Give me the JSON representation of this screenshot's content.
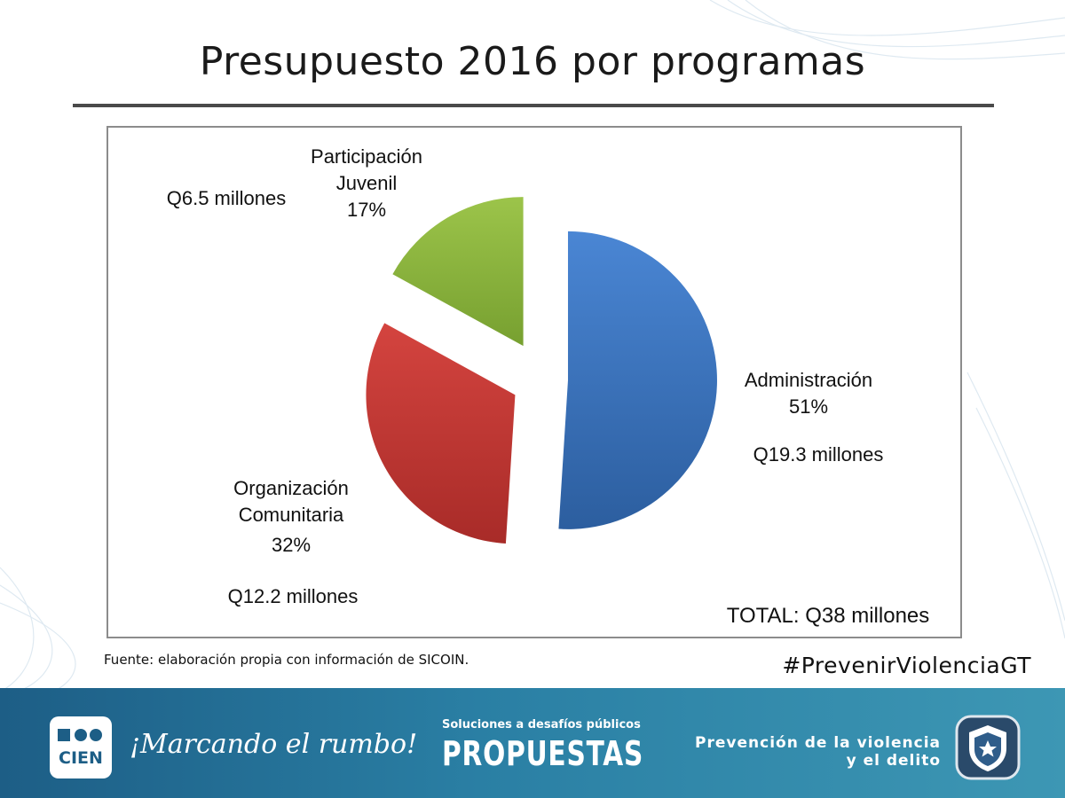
{
  "header": {
    "title": "Presupuesto 2016 por programas"
  },
  "chart_data": {
    "type": "pie",
    "title": "Presupuesto 2016 por programas",
    "slices": [
      {
        "name": "Administración",
        "percent": 51,
        "amount_label": "Q19.3 millones",
        "value": 19.3,
        "color": "#3a77c3"
      },
      {
        "name": "Organización Comunitaria",
        "name_lines": [
          "Organización",
          "Comunitaria"
        ],
        "percent": 32,
        "amount_label": "Q12.2 millones",
        "value": 12.2,
        "color": "#c33a36"
      },
      {
        "name": "Participación Juvenil",
        "name_lines": [
          "Participación",
          "Juvenil"
        ],
        "percent": 17,
        "amount_label": "Q6.5 millones",
        "value": 6.5,
        "color": "#8cb43d"
      }
    ],
    "total_label": "TOTAL: Q38 millones",
    "exploded": true
  },
  "labels": {
    "admin_name": "Administración",
    "admin_pct": "51%",
    "admin_amount": "Q19.3 millones",
    "org_line1": "Organización",
    "org_line2": "Comunitaria",
    "org_pct": "32%",
    "org_amount": "Q12.2 millones",
    "part_line1": "Participación",
    "part_line2": "Juvenil",
    "part_pct": "17%",
    "part_amount": "Q6.5 millones",
    "total": "TOTAL: Q38 millones"
  },
  "source": "Fuente: elaboración propia con información de SICOIN.",
  "hashtag": "#PrevenirViolenciaGT",
  "footer": {
    "logo_text": "CIEN",
    "slogan": "¡Marcando el rumbo!",
    "propuestas_sub": "Soluciones a desafíos públicos",
    "propuestas_main": "PROPUESTAS",
    "prevencion_line1": "Prevención de la violencia",
    "prevencion_line2": "y el delito"
  }
}
